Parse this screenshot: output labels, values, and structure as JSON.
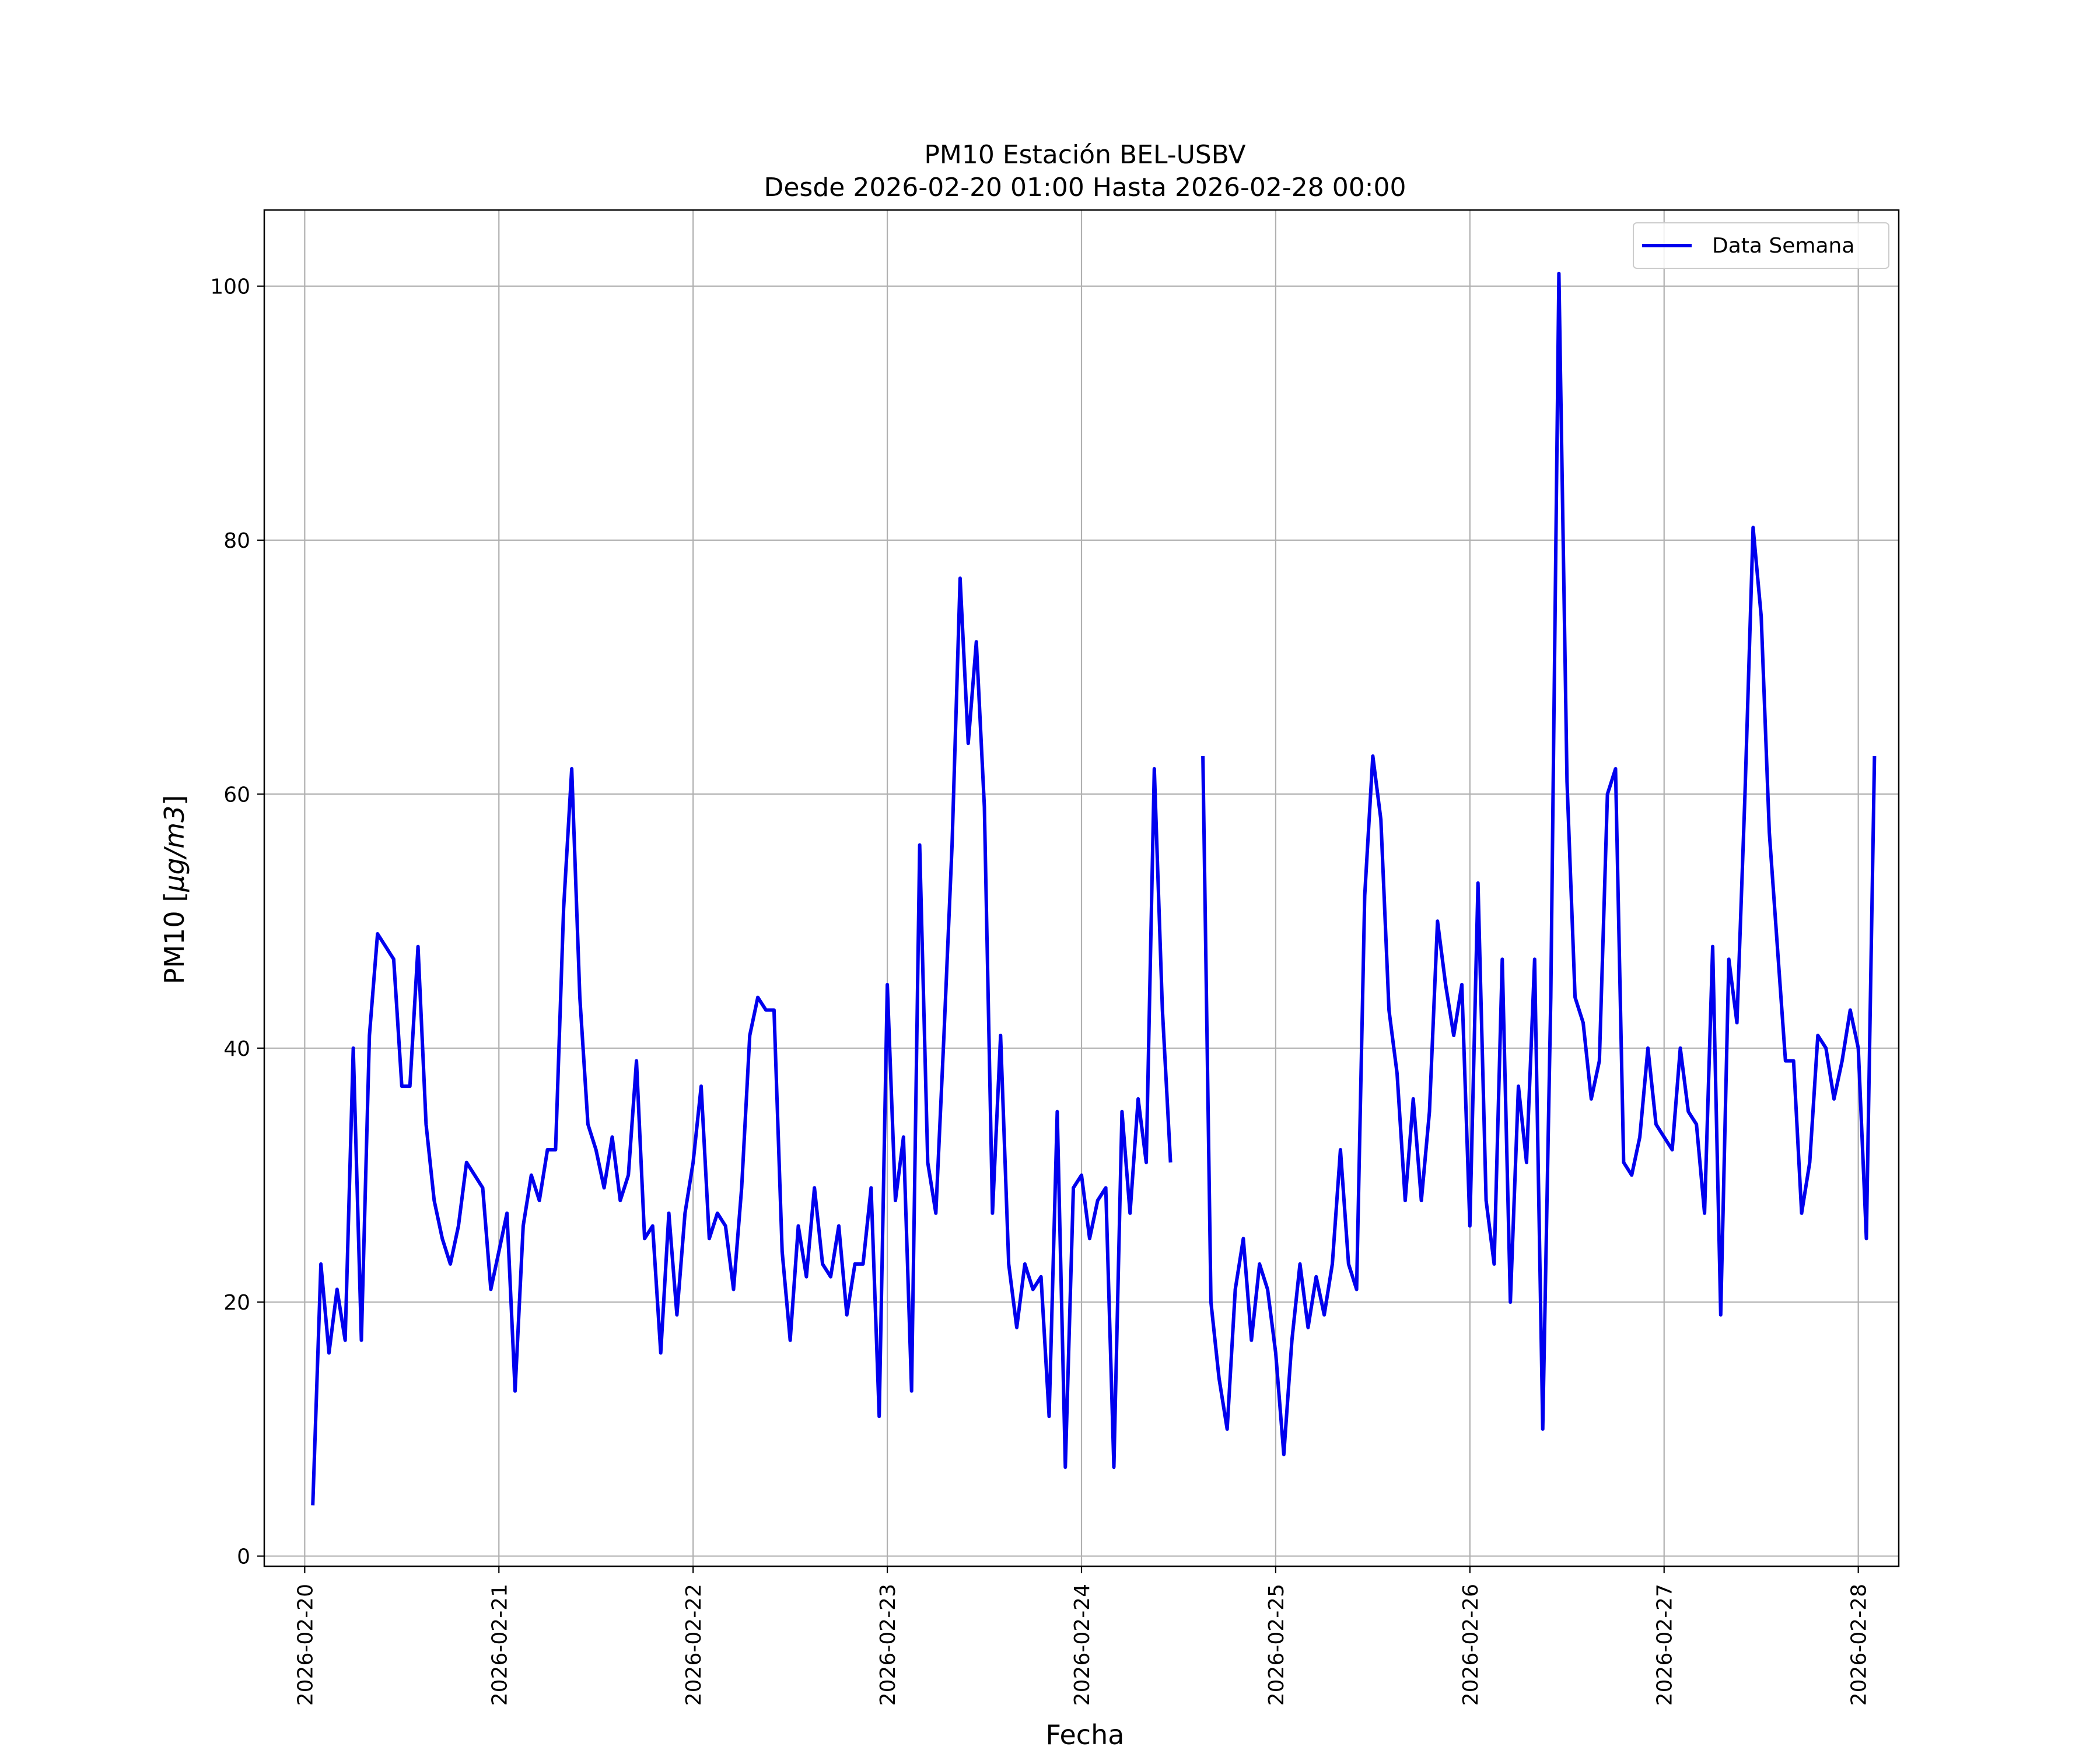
{
  "chart_data": {
    "type": "line",
    "title": "PM10 Estación BEL-USBV",
    "subtitle": "Desde 2026-02-20 01:00 Hasta 2026-02-28 00:00",
    "xlabel": "Fecha",
    "ylabel_main": "PM10 [",
    "ylabel_unit": "μg/m3",
    "ylabel_close": "]",
    "ylim": [
      -0.8,
      106
    ],
    "xlim": [
      "2026-02-19T19:00",
      "2026-02-28T05:00"
    ],
    "grid": true,
    "legend_position": "top-right",
    "color": "#0000ee",
    "yticks": [
      0,
      20,
      40,
      60,
      80,
      100
    ],
    "xticks": [
      "2026-02-20",
      "2026-02-21",
      "2026-02-22",
      "2026-02-23",
      "2026-02-24",
      "2026-02-25",
      "2026-02-26",
      "2026-02-27",
      "2026-02-28"
    ],
    "series": [
      {
        "name": "Data Semana",
        "start": "2026-02-20T01:00",
        "interval_hours": 1,
        "values": [
          4,
          23,
          16,
          21,
          17,
          40,
          17,
          41,
          49,
          48,
          47,
          37,
          37,
          48,
          34,
          28,
          25,
          23,
          26,
          31,
          30,
          29,
          21,
          24,
          27,
          13,
          26,
          30,
          28,
          32,
          32,
          51,
          62,
          44,
          34,
          32,
          29,
          33,
          28,
          30,
          39,
          25,
          26,
          16,
          27,
          19,
          27,
          31,
          37,
          25,
          27,
          26,
          21,
          29,
          41,
          44,
          43,
          43,
          24,
          17,
          26,
          22,
          29,
          23,
          22,
          26,
          19,
          23,
          23,
          29,
          11,
          45,
          28,
          33,
          13,
          56,
          31,
          27,
          41,
          56,
          77,
          64,
          72,
          59,
          27,
          41,
          23,
          18,
          23,
          21,
          22,
          11,
          35,
          7,
          29,
          30,
          25,
          28,
          29,
          7,
          35,
          27,
          36,
          31,
          62,
          43,
          31,
          null,
          null,
          null,
          63,
          20,
          14,
          10,
          21,
          25,
          17,
          23,
          21,
          16,
          8,
          17,
          23,
          18,
          22,
          19,
          23,
          32,
          23,
          21,
          52,
          63,
          58,
          43,
          38,
          28,
          36,
          28,
          35,
          50,
          45,
          41,
          45,
          26,
          53,
          28,
          23,
          47,
          20,
          37,
          31,
          47,
          10,
          44,
          101,
          61,
          44,
          42,
          36,
          39,
          60,
          62,
          31,
          30,
          33,
          40,
          34,
          33,
          32,
          40,
          35,
          34,
          27,
          48,
          19,
          47,
          42,
          60,
          81,
          74,
          57,
          48,
          39,
          39,
          27,
          31,
          41,
          40,
          36,
          39,
          43,
          40,
          25,
          63
        ]
      }
    ]
  }
}
